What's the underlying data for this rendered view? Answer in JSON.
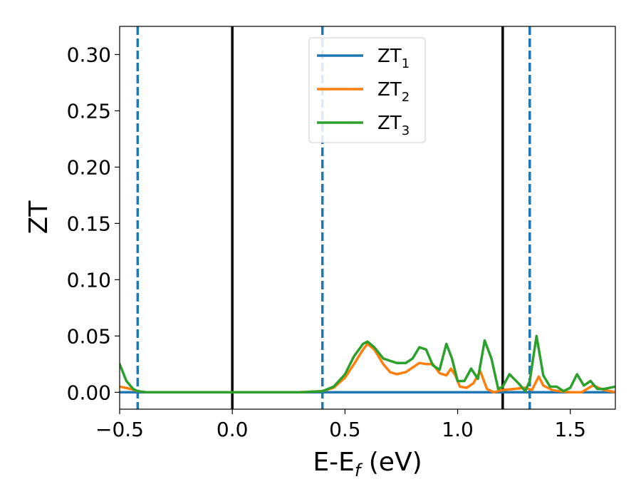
{
  "chart_data": {
    "type": "line",
    "title": "",
    "xlabel": {
      "main": "E-E",
      "sub": "f",
      "suffix": " (eV)"
    },
    "ylabel": "ZT",
    "xlim": [
      -0.5,
      1.7
    ],
    "ylim": [
      -0.015,
      0.325
    ],
    "x_ticks": [
      -0.5,
      0.0,
      0.5,
      1.0,
      1.5
    ],
    "x_tick_labels": [
      "−0.5",
      "0.0",
      "0.5",
      "1.0",
      "1.5"
    ],
    "y_ticks": [
      0.0,
      0.05,
      0.1,
      0.15,
      0.2,
      0.25,
      0.3
    ],
    "y_tick_labels": [
      "0.00",
      "0.05",
      "0.10",
      "0.15",
      "0.20",
      "0.25",
      "0.30"
    ],
    "grid": false,
    "legend_position": "top-center",
    "vlines": [
      {
        "x": -0.42,
        "style": "dashed",
        "color": "#1f77b4"
      },
      {
        "x": 0.0,
        "style": "solid",
        "color": "#000000"
      },
      {
        "x": 0.4,
        "style": "dashed",
        "color": "#1f77b4"
      },
      {
        "x": 1.2,
        "style": "solid",
        "color": "#000000"
      },
      {
        "x": 1.32,
        "style": "dashed",
        "color": "#1f77b4"
      }
    ],
    "series": [
      {
        "name": "ZT",
        "subscript": "1",
        "color": "#1f77b4",
        "x": [
          -0.5,
          1.7
        ],
        "y": [
          0.0,
          0.0
        ]
      },
      {
        "name": "ZT",
        "subscript": "2",
        "color": "#ff7f0e",
        "x": [
          -0.5,
          -0.45,
          -0.42,
          -0.38,
          -0.3,
          0.0,
          0.3,
          0.4,
          0.45,
          0.5,
          0.54,
          0.58,
          0.6,
          0.63,
          0.67,
          0.7,
          0.73,
          0.77,
          0.8,
          0.83,
          0.86,
          0.89,
          0.92,
          0.95,
          0.97,
          0.99,
          1.01,
          1.04,
          1.07,
          1.1,
          1.13,
          1.16,
          1.2,
          1.25,
          1.3,
          1.33,
          1.36,
          1.38,
          1.4,
          1.42,
          1.45,
          1.5,
          1.55,
          1.6,
          1.65,
          1.7
        ],
        "y": [
          0.005,
          0.003,
          0.001,
          0.0,
          0.0,
          0.0,
          0.0,
          0.001,
          0.004,
          0.013,
          0.025,
          0.038,
          0.043,
          0.038,
          0.025,
          0.018,
          0.016,
          0.018,
          0.022,
          0.026,
          0.025,
          0.025,
          0.017,
          0.015,
          0.021,
          0.015,
          0.005,
          0.004,
          0.008,
          0.019,
          0.003,
          0.0,
          0.002,
          0.003,
          0.004,
          0.002,
          0.014,
          0.006,
          0.004,
          0.002,
          0.001,
          0.0,
          0.0,
          0.006,
          0.002,
          0.0
        ]
      },
      {
        "name": "ZT",
        "subscript": "3",
        "color": "#2ca02c",
        "x": [
          -0.5,
          -0.47,
          -0.44,
          -0.42,
          -0.38,
          -0.3,
          0.0,
          0.3,
          0.4,
          0.45,
          0.5,
          0.54,
          0.58,
          0.6,
          0.63,
          0.67,
          0.7,
          0.73,
          0.77,
          0.8,
          0.83,
          0.86,
          0.89,
          0.92,
          0.95,
          0.975,
          1.0,
          1.03,
          1.06,
          1.09,
          1.12,
          1.15,
          1.18,
          1.2,
          1.23,
          1.27,
          1.3,
          1.32,
          1.35,
          1.38,
          1.41,
          1.44,
          1.47,
          1.5,
          1.53,
          1.56,
          1.59,
          1.62,
          1.65,
          1.7
        ],
        "y": [
          0.025,
          0.01,
          0.003,
          0.001,
          0.0,
          0.0,
          0.0,
          0.0,
          0.001,
          0.005,
          0.016,
          0.032,
          0.043,
          0.045,
          0.04,
          0.03,
          0.028,
          0.026,
          0.026,
          0.03,
          0.04,
          0.038,
          0.024,
          0.02,
          0.043,
          0.03,
          0.01,
          0.01,
          0.021,
          0.012,
          0.046,
          0.03,
          0.003,
          0.005,
          0.016,
          0.008,
          0.001,
          0.01,
          0.05,
          0.015,
          0.005,
          0.005,
          0.001,
          0.004,
          0.016,
          0.006,
          0.01,
          0.003,
          0.003,
          0.005
        ]
      }
    ]
  }
}
